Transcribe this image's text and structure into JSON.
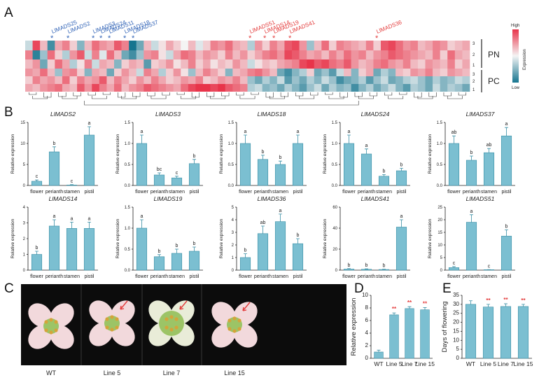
{
  "panels": {
    "A": "A",
    "B": "B",
    "C": "C",
    "D": "D",
    "E": "E"
  },
  "colors": {
    "bar_fill": "#7bbfd1",
    "bar_stroke": "#3a8fa6",
    "heat_high": "#e8344a",
    "heat_mid": "#f4f4f4",
    "heat_low": "#16758f",
    "gene_blue": "#2f62b6",
    "gene_red": "#e33b3b"
  },
  "heatmap": {
    "row_labels": [
      "3",
      "2",
      "1",
      "3",
      "2",
      "1"
    ],
    "groups": [
      "PN",
      "PC"
    ],
    "legend": {
      "high": "High",
      "low": "Low",
      "title": "Expression"
    },
    "blue_genes": [
      "LlMADS25",
      "LlMADS2",
      "LlMADS3",
      "LlMADS24",
      "LlMADS11",
      "LlMADS18",
      "LlMADS37"
    ],
    "red_genes": [
      "LlMADS51",
      "LlMADS14",
      "LlMADS19",
      "LlMADS41",
      "LlMADS36"
    ],
    "star": "*",
    "values": [
      [
        -0.2,
        0.9,
        0.3,
        -0.8,
        0.4,
        0.6,
        0.2,
        -0.5,
        0.3,
        0.7,
        0.5,
        0.4,
        0.8,
        0.6,
        -1.0,
        -0.6,
        0.3,
        -0.2,
        0.1,
        0.4,
        0.2,
        0.0,
        0.3,
        -0.1,
        0.2,
        0.6,
        0.5,
        0.7,
        0.4,
        0.3,
        -0.3,
        0.5,
        0.2,
        0.6,
        0.4,
        0.8,
        0.9,
        0.5,
        -0.4,
        0.3,
        0.7,
        0.2,
        0.6,
        0.5,
        0.4,
        0.3,
        0.6,
        0.2,
        0.8,
        0.9,
        0.7,
        0.5,
        0.6,
        0.3,
        0.4,
        0.6,
        0.5,
        0.2,
        0.3,
        0.4
      ],
      [
        0.6,
        -0.9,
        -0.4,
        0.7,
        0.2,
        -0.3,
        0.5,
        0.8,
        -0.2,
        0.6,
        -0.1,
        0.7,
        0.3,
        -0.6,
        -0.8,
        -0.4,
        0.5,
        0.6,
        0.1,
        -0.2,
        0.4,
        0.7,
        0.6,
        0.3,
        0.5,
        0.4,
        0.2,
        0.6,
        0.3,
        0.5,
        0.2,
        0.4,
        0.6,
        0.7,
        0.5,
        0.9,
        0.8,
        0.6,
        0.4,
        0.5,
        0.3,
        0.6,
        0.4,
        0.7,
        0.5,
        0.6,
        0.3,
        0.5,
        0.6,
        0.8,
        0.7,
        0.6,
        0.5,
        0.4,
        0.3,
        0.6,
        0.2,
        0.7,
        0.4,
        0.3
      ],
      [
        0.3,
        0.5,
        -0.6,
        0.2,
        0.7,
        0.4,
        -0.3,
        0.1,
        0.6,
        -0.2,
        0.4,
        0.3,
        -0.5,
        0.2,
        0.4,
        0.3,
        -0.7,
        0.2,
        0.3,
        0.5,
        0.1,
        0.3,
        0.6,
        0.2,
        0.4,
        0.1,
        0.3,
        0.2,
        0.5,
        0.3,
        -0.2,
        0.1,
        0.3,
        0.2,
        0.4,
        0.5,
        0.6,
        0.9,
        1.0,
        0.8,
        0.9,
        0.7,
        0.6,
        0.8,
        0.5,
        0.3,
        0.4,
        0.6,
        0.7,
        0.5,
        0.4,
        0.6,
        0.3,
        0.2,
        0.5,
        0.4,
        0.3,
        0.6,
        0.2,
        0.4
      ],
      [
        0.5,
        0.4,
        0.7,
        0.3,
        -0.4,
        0.5,
        0.6,
        0.2,
        -0.5,
        0.4,
        0.3,
        -0.6,
        0.2,
        0.5,
        0.3,
        -0.2,
        0.6,
        0.4,
        -0.3,
        0.2,
        0.5,
        0.1,
        -0.4,
        0.3,
        0.6,
        0.4,
        0.2,
        -0.5,
        0.3,
        0.4,
        0.6,
        0.7,
        0.5,
        0.3,
        -0.6,
        -0.8,
        -0.5,
        -0.3,
        0.2,
        -0.6,
        -0.4,
        -0.7,
        -0.2,
        0.3,
        -0.5,
        0.2,
        0.4,
        -0.6,
        -0.3,
        -0.5,
        0.3,
        0.2,
        0.5,
        0.4,
        0.6,
        0.3,
        0.2,
        0.5,
        0.4,
        0.3
      ],
      [
        0.2,
        0.6,
        0.4,
        0.5,
        0.3,
        0.7,
        0.2,
        0.6,
        0.4,
        0.5,
        0.8,
        0.3,
        0.6,
        0.4,
        0.2,
        0.5,
        0.3,
        0.6,
        0.4,
        0.2,
        0.3,
        0.5,
        0.4,
        0.6,
        0.2,
        0.3,
        0.5,
        0.4,
        0.6,
        0.3,
        -0.4,
        -0.6,
        -0.3,
        -0.5,
        -0.2,
        -0.7,
        -0.4,
        -0.6,
        -0.3,
        -0.5,
        -0.2,
        -0.4,
        -0.8,
        -0.6,
        -0.5,
        -0.3,
        -0.7,
        -0.4,
        -0.2,
        -0.6,
        -0.5,
        -0.3,
        -0.2,
        -0.4,
        -0.6,
        -0.3,
        -0.5,
        -0.4,
        -0.2,
        -0.3
      ],
      [
        0.4,
        0.3,
        0.5,
        0.6,
        0.7,
        0.4,
        0.3,
        0.8,
        0.5,
        0.9,
        0.6,
        0.4,
        0.7,
        0.3,
        0.5,
        0.6,
        0.8,
        0.7,
        0.6,
        0.5,
        0.4,
        0.7,
        0.9,
        1.0,
        1.0,
        0.9,
        1.0,
        0.8,
        0.7,
        0.6,
        -0.3,
        -0.2,
        -0.5,
        -0.4,
        -0.6,
        -0.3,
        -0.5,
        -0.7,
        -0.4,
        -0.2,
        -0.6,
        -0.3,
        -0.5,
        -0.4,
        -0.8,
        -0.5,
        -0.3,
        -0.6,
        -0.4,
        -0.2,
        -0.5,
        -0.7,
        -0.3,
        -0.4,
        -0.6,
        -0.2,
        -0.5,
        -0.3,
        -0.4,
        -0.6
      ]
    ]
  },
  "chart_data": [
    {
      "type": "bar",
      "title": "LlMADS2",
      "categories": [
        "flower",
        "perianth",
        "stamen",
        "pistil"
      ],
      "values": [
        1,
        8,
        0.1,
        12
      ],
      "errors": [
        0.3,
        1.2,
        0.1,
        2
      ],
      "ylim": [
        0,
        15
      ],
      "yticks": [
        "0",
        "5",
        "10",
        "15"
      ],
      "letters": [
        "c",
        "b",
        "c",
        "a"
      ],
      "ylabel": "Relative expression"
    },
    {
      "type": "bar",
      "title": "LlMADS3",
      "categories": [
        "flower",
        "perianth",
        "stamen",
        "pistil"
      ],
      "values": [
        1.0,
        0.25,
        0.18,
        0.52
      ],
      "errors": [
        0.2,
        0.05,
        0.04,
        0.1
      ],
      "ylim": [
        0,
        1.5
      ],
      "yticks": [
        "0.0",
        "0.5",
        "1.0",
        "1.5"
      ],
      "letters": [
        "a",
        "bc",
        "c",
        "b"
      ],
      "ylabel": "Relative expression"
    },
    {
      "type": "bar",
      "title": "LlMADS18",
      "categories": [
        "flower",
        "perianth",
        "stamen",
        "pistil"
      ],
      "values": [
        1.0,
        0.62,
        0.5,
        1.0
      ],
      "errors": [
        0.2,
        0.1,
        0.08,
        0.2
      ],
      "ylim": [
        0,
        1.5
      ],
      "yticks": [
        "0.0",
        "0.5",
        "1.0",
        "1.5"
      ],
      "letters": [
        "a",
        "b",
        "b",
        "a"
      ],
      "ylabel": "Relative expression"
    },
    {
      "type": "bar",
      "title": "LlMADS24",
      "categories": [
        "flower",
        "perianth",
        "stamen",
        "pistil"
      ],
      "values": [
        1.0,
        0.75,
        0.22,
        0.35
      ],
      "errors": [
        0.2,
        0.12,
        0.04,
        0.06
      ],
      "ylim": [
        0,
        1.5
      ],
      "yticks": [
        "0.0",
        "0.5",
        "1.0",
        "1.5"
      ],
      "letters": [
        "a",
        "a",
        "b",
        "b"
      ],
      "ylabel": "Relative expression"
    },
    {
      "type": "bar",
      "title": "LlMADS37",
      "categories": [
        "flower",
        "perianth",
        "stamen",
        "pistil"
      ],
      "values": [
        1.0,
        0.6,
        0.78,
        1.18
      ],
      "errors": [
        0.18,
        0.1,
        0.1,
        0.2
      ],
      "ylim": [
        0,
        1.5
      ],
      "yticks": [
        "0.0",
        "0.5",
        "1.0",
        "1.5"
      ],
      "letters": [
        "ab",
        "b",
        "ab",
        "a"
      ],
      "ylabel": "Relative expression"
    },
    {
      "type": "bar",
      "title": "LlMADS14",
      "categories": [
        "flower",
        "perianth",
        "stamen",
        "pistil"
      ],
      "values": [
        1.0,
        2.8,
        2.65,
        2.65
      ],
      "errors": [
        0.2,
        0.4,
        0.4,
        0.4
      ],
      "ylim": [
        0,
        4
      ],
      "yticks": [
        "0",
        "1",
        "2",
        "3",
        "4"
      ],
      "letters": [
        "b",
        "a",
        "a",
        "a"
      ],
      "ylabel": "Relative expression"
    },
    {
      "type": "bar",
      "title": "LlMADS19",
      "categories": [
        "flower",
        "perianth",
        "stamen",
        "pistil"
      ],
      "values": [
        1.0,
        0.32,
        0.4,
        0.45
      ],
      "errors": [
        0.2,
        0.05,
        0.1,
        0.1
      ],
      "ylim": [
        0,
        1.5
      ],
      "yticks": [
        "0.0",
        "0.5",
        "1.0",
        "1.5"
      ],
      "letters": [
        "a",
        "b",
        "b",
        "b"
      ],
      "ylabel": "Relative expression"
    },
    {
      "type": "bar",
      "title": "LlMADS36",
      "categories": [
        "flower",
        "perianth",
        "stamen",
        "pistil"
      ],
      "values": [
        1.0,
        2.9,
        3.85,
        2.1
      ],
      "errors": [
        0.3,
        0.6,
        0.6,
        0.4
      ],
      "ylim": [
        0,
        5
      ],
      "yticks": [
        "0",
        "1",
        "2",
        "3",
        "4",
        "5"
      ],
      "letters": [
        "b",
        "ab",
        "a",
        "b"
      ],
      "ylabel": "Relative expression"
    },
    {
      "type": "bar",
      "title": "LlMADS41",
      "categories": [
        "flower",
        "perianth",
        "stamen",
        "pistil"
      ],
      "values": [
        1.0,
        0.8,
        0.6,
        41
      ],
      "errors": [
        0.5,
        0.4,
        0.3,
        7
      ],
      "ylim": [
        0,
        60
      ],
      "yticks": [
        "0",
        "20",
        "40",
        "60"
      ],
      "letters": [
        "b",
        "b",
        "b",
        "a"
      ],
      "ylabel": "Relative expression"
    },
    {
      "type": "bar",
      "title": "LlMADS51",
      "categories": [
        "flower",
        "perianth",
        "stamen",
        "pistil"
      ],
      "values": [
        1.0,
        19,
        0.1,
        13.5
      ],
      "errors": [
        0.4,
        3,
        0.1,
        2.5
      ],
      "ylim": [
        0,
        25
      ],
      "yticks": [
        "0",
        "5",
        "10",
        "15",
        "20",
        "25"
      ],
      "letters": [
        "c",
        "a",
        "c",
        "b"
      ],
      "ylabel": "Relative expression"
    },
    {
      "type": "bar",
      "title": "",
      "categories": [
        "WT",
        "Line 5",
        "Line 7",
        "Line 15"
      ],
      "values": [
        1.0,
        6.9,
        7.9,
        7.7
      ],
      "errors": [
        0.3,
        0.3,
        0.3,
        0.35
      ],
      "ylim": [
        0,
        10
      ],
      "yticks": [
        "0",
        "2",
        "4",
        "6",
        "8",
        "10"
      ],
      "letters": [
        "",
        "**",
        "**",
        "**"
      ],
      "ylabel": "Relative expression"
    },
    {
      "type": "bar",
      "title": "",
      "categories": [
        "WT",
        "Line 5",
        "Line 7",
        "Line 15"
      ],
      "values": [
        30,
        28.5,
        28.8,
        28.8
      ],
      "errors": [
        2,
        1.5,
        1.5,
        1.2
      ],
      "ylim": [
        0,
        35
      ],
      "yticks": [
        "0",
        "5",
        "10",
        "15",
        "20",
        "25",
        "30",
        "35"
      ],
      "letters": [
        "",
        "**",
        "**",
        "**"
      ],
      "ylabel": "Days of flowering"
    }
  ],
  "photos": {
    "labels": [
      "WT",
      "Line 5",
      "Line 7",
      "Line 15"
    ]
  }
}
